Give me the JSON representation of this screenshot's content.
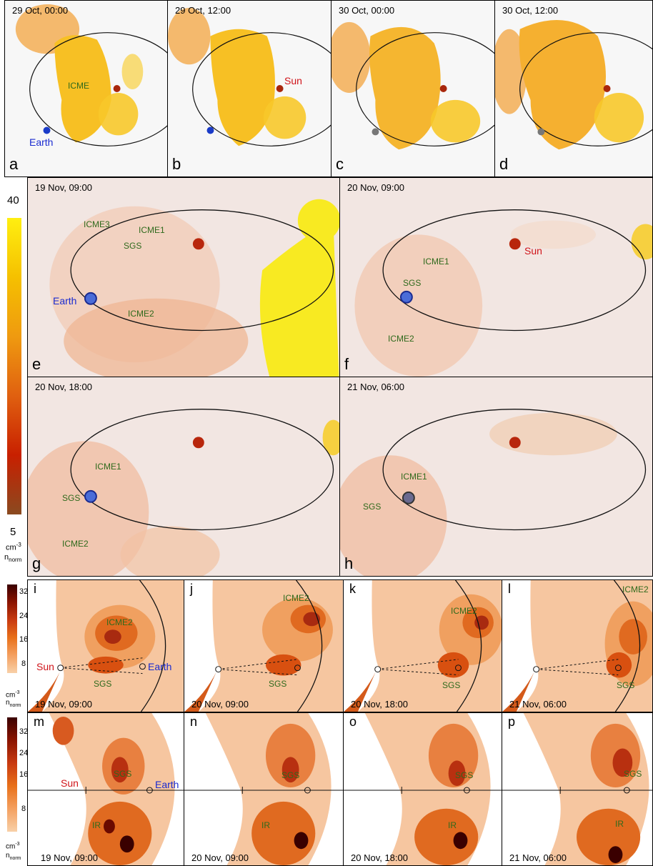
{
  "top_row": {
    "panels": [
      {
        "letter": "a",
        "time": "29 Oct, 00:00"
      },
      {
        "letter": "b",
        "time": "29 Oct, 12:00"
      },
      {
        "letter": "c",
        "time": "30 Oct, 00:00"
      },
      {
        "letter": "d",
        "time": "30 Oct, 12:00"
      }
    ],
    "labels": {
      "icme": "ICME",
      "sun": "Sun",
      "earth": "Earth"
    }
  },
  "mid": {
    "panels": [
      {
        "letter": "e",
        "time": "19 Nov, 09:00"
      },
      {
        "letter": "f",
        "time": "20 Nov, 09:00"
      },
      {
        "letter": "g",
        "time": "20 Nov, 18:00"
      },
      {
        "letter": "h",
        "time": "21 Nov, 06:00"
      }
    ],
    "labels": {
      "icme1": "ICME1",
      "icme2": "ICME2",
      "icme3": "ICME3",
      "sgs": "SGS",
      "sun": "Sun",
      "earth": "Earth"
    },
    "colorbar": {
      "max": "40",
      "min": "5",
      "unit": "cm",
      "unit_exp": "-3",
      "norm": "n",
      "norm_sub": "norm"
    }
  },
  "row3": {
    "panels": [
      {
        "letter": "i",
        "time": "19 Nov, 09:00"
      },
      {
        "letter": "j",
        "time": "20 Nov, 09:00"
      },
      {
        "letter": "k",
        "time": "20 Nov, 18:00"
      },
      {
        "letter": "l",
        "time": "21 Nov, 06:00"
      }
    ],
    "labels": {
      "icme2": "ICME2",
      "sgs": "SGS",
      "sun": "Sun",
      "earth": "Earth"
    },
    "colorbar": {
      "ticks": [
        "32",
        "24",
        "16",
        "8"
      ],
      "unit": "cm",
      "unit_exp": "-3",
      "norm": "n",
      "norm_sub": "norm"
    }
  },
  "row4": {
    "panels": [
      {
        "letter": "m",
        "time": "19 Nov, 09:00"
      },
      {
        "letter": "n",
        "time": "20 Nov, 09:00"
      },
      {
        "letter": "o",
        "time": "20 Nov, 18:00"
      },
      {
        "letter": "p",
        "time": "21 Nov, 06:00"
      }
    ],
    "labels": {
      "sgs": "SGS",
      "ir": "IR",
      "sun": "Sun",
      "earth": "Earth"
    },
    "colorbar": {
      "ticks": [
        "32",
        "24",
        "16",
        "8"
      ],
      "unit": "cm",
      "unit_exp": "-3",
      "norm": "n",
      "norm_sub": "norm"
    }
  },
  "colors": {
    "sun": "#d0141a",
    "earth": "#1a2bd0",
    "label": "#2f6a1c",
    "density_low": "#f6c8a8",
    "density_high": "#8a1a00",
    "cme_yellow": "#f5c400"
  }
}
